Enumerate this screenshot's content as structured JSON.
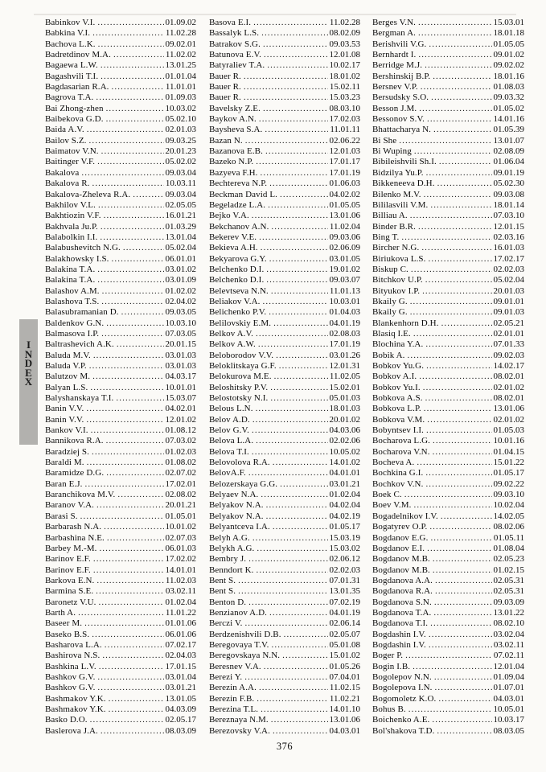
{
  "page": {
    "number": "376",
    "sidebar_label": "INDEX",
    "sidebar_letters": [
      "I",
      "N",
      "D",
      "E",
      "X"
    ]
  },
  "columns": [
    {
      "entries": [
        {
          "name": "Babinkov V.I.",
          "code": "01.09.02"
        },
        {
          "name": "Babkina V.I.",
          "code": "11.02.28"
        },
        {
          "name": "Bachova L.K.",
          "code": "09.02.01"
        },
        {
          "name": "Badretdinov M.A.",
          "code": "11.02.02"
        },
        {
          "name": "Bagaewa L.W.",
          "code": "13.01.25"
        },
        {
          "name": "Bagashvili T.I.",
          "code": "01.01.04"
        },
        {
          "name": "Bagdasarian R.A.",
          "code": "11.01.01"
        },
        {
          "name": "Bagrova T.A.",
          "code": "01.09.03"
        },
        {
          "name": "Bai Zhong-zhen",
          "code": "10.03.02"
        },
        {
          "name": "Baibekova G.D.",
          "code": "05.02.10"
        },
        {
          "name": "Baida A.V.",
          "code": "02.01.03"
        },
        {
          "name": "Bailov S.Z.",
          "code": "09.03.25"
        },
        {
          "name": "Baimatov V.N.",
          "code": "20.01.23"
        },
        {
          "name": "Baitinger V.F.",
          "code": "05.02.02"
        },
        {
          "name": "Bakalova",
          "code": "09.03.04"
        },
        {
          "name": "Bakalova R.",
          "code": "10.03.11"
        },
        {
          "name": "Bakalova-Zheleva R.A.",
          "code": "09.03.04"
        },
        {
          "name": "Bakhilov V.L.",
          "code": "02.05.05"
        },
        {
          "name": "Bakhtiozin V.F.",
          "code": "16.01.21"
        },
        {
          "name": "Bakhvala Ju.P.",
          "code": "01.03.29"
        },
        {
          "name": "Balabolkin I.I.",
          "code": "13.01.04"
        },
        {
          "name": "Balabushevitch N.G.",
          "code": "05.02.04"
        },
        {
          "name": "Balakhowsky I.S.",
          "code": "06.01.01"
        },
        {
          "name": "Balakina T.A.",
          "code": "03.01.02"
        },
        {
          "name": "Balakina T.A.",
          "code": "03.01.09"
        },
        {
          "name": "Balashov A.M.",
          "code": "01.02.02"
        },
        {
          "name": "Balashova T.S.",
          "code": "02.04.02"
        },
        {
          "name": "Balasubramanian D.",
          "code": "09.03.05"
        },
        {
          "name": "Baldenkov G.N.",
          "code": "10.03.10"
        },
        {
          "name": "Balmasova I.P.",
          "code": "07.03.05"
        },
        {
          "name": "Baltrashevich A.K.",
          "code": "20.01.15"
        },
        {
          "name": "Baluda M.V.",
          "code": "03.01.03"
        },
        {
          "name": "Baluda V.P.",
          "code": "03.01.03"
        },
        {
          "name": "Balutzov M.",
          "code": "04.03.17"
        },
        {
          "name": "Balyan L.S.",
          "code": "10.01.01"
        },
        {
          "name": "Balyshanskaya T.I.",
          "code": "15.03.07"
        },
        {
          "name": "Banin V.V.",
          "code": "04.02.01"
        },
        {
          "name": "Banin V.V.",
          "code": "12.01.02"
        },
        {
          "name": "Bankov V.I.",
          "code": "01.08.12"
        },
        {
          "name": "Bannikova R.A.",
          "code": "07.03.02"
        },
        {
          "name": "Baradziej S.",
          "code": "01.02.03"
        },
        {
          "name": "Baraldi M.",
          "code": "01.08.02"
        },
        {
          "name": "Baramidze D.G.",
          "code": "02.07.02"
        },
        {
          "name": "Baran E.J.",
          "code": "17.02.01"
        },
        {
          "name": "Baranchikova M.V.",
          "code": "02.08.02"
        },
        {
          "name": "Baranov V.A.",
          "code": "20.01.21"
        },
        {
          "name": "Barasi S.",
          "code": "01.05.01"
        },
        {
          "name": "Barbarash N.A.",
          "code": "10.01.02"
        },
        {
          "name": "Barbashina N.E.",
          "code": "02.07.03"
        },
        {
          "name": "Barbey M.-M.",
          "code": "06.01.03"
        },
        {
          "name": "Barinov E.F.",
          "code": "17.02.02"
        },
        {
          "name": "Barinov E.F.",
          "code": "14.01.01"
        },
        {
          "name": "Barkova E.N.",
          "code": "11.02.03"
        },
        {
          "name": "Barmina S.E.",
          "code": "03.02.11"
        },
        {
          "name": "Baronetz V.U.",
          "code": "01.02.04"
        },
        {
          "name": "Barth A.",
          "code": "11.01.22"
        },
        {
          "name": "Baseer M.",
          "code": "01.01.06"
        },
        {
          "name": "Baseko B.S.",
          "code": "06.01.06"
        },
        {
          "name": "Basharova L.A.",
          "code": "07.02.17"
        },
        {
          "name": "Bashirova N.S.",
          "code": "02.04.03"
        },
        {
          "name": "Bashkina L.V.",
          "code": "17.01.15"
        },
        {
          "name": "Bashkov G.V.",
          "code": "03.01.04"
        },
        {
          "name": "Bashkov G.V.",
          "code": "03.01.21"
        },
        {
          "name": "Bashmakov Y.K.",
          "code": "13.01.05"
        },
        {
          "name": "Bashmakov Y.K.",
          "code": "04.03.09"
        },
        {
          "name": "Basko D.O.",
          "code": "02.05.17"
        },
        {
          "name": "Baslerova J.A.",
          "code": "08.03.09"
        }
      ]
    },
    {
      "entries": [
        {
          "name": "Basova E.I.",
          "code": "11.02.28"
        },
        {
          "name": "Bassalyk L.S.",
          "code": "08.02.09"
        },
        {
          "name": "Batrakov S.G.",
          "code": "09.03.53"
        },
        {
          "name": "Batunova E.V.",
          "code": "12.01.08"
        },
        {
          "name": "Batyraliev T.A.",
          "code": "10.02.17"
        },
        {
          "name": "Bauer R.",
          "code": "18.01.02"
        },
        {
          "name": "Bauer R.",
          "code": "15.02.11"
        },
        {
          "name": "Bauer R.",
          "code": "15.03.23"
        },
        {
          "name": "Bavelsky Z.E.",
          "code": "08.03.10"
        },
        {
          "name": "Baykov A.N.",
          "code": "17.02.03"
        },
        {
          "name": "Baysheva S.A.",
          "code": "11.01.11"
        },
        {
          "name": "Bazan N.",
          "code": "02.06.22"
        },
        {
          "name": "Bazanova E.B.",
          "code": "12.01.03"
        },
        {
          "name": "Bazeko N.P.",
          "code": "17.01.17"
        },
        {
          "name": "Bazyeva F.H.",
          "code": "17.01.19"
        },
        {
          "name": "Bechtereva N.P.",
          "code": "01.06.03"
        },
        {
          "name": "Beckman David L.",
          "code": "04.02.02"
        },
        {
          "name": "Begeladze L.A.",
          "code": "01.05.05"
        },
        {
          "name": "Bejko V.A.",
          "code": "13.01.06"
        },
        {
          "name": "Bekchanov A.N.",
          "code": "11.02.04"
        },
        {
          "name": "Bekerev V.E.",
          "code": "09.03.06"
        },
        {
          "name": "Bekieva A.H.",
          "code": "02.06.09"
        },
        {
          "name": "Bekyarova G.Y.",
          "code": "03.01.05"
        },
        {
          "name": "Belchenko D.I.",
          "code": "19.01.02"
        },
        {
          "name": "Belchenko D.I.",
          "code": "09.03.07"
        },
        {
          "name": "Belevtseva N.N.",
          "code": "11.01.13"
        },
        {
          "name": "Beliakov V.A.",
          "code": "10.03.01"
        },
        {
          "name": "Belichenko P.V.",
          "code": "01.04.03"
        },
        {
          "name": "Belilovskiy E.M.",
          "code": "04.01.19"
        },
        {
          "name": "Belkov A.V.",
          "code": "02.08.03"
        },
        {
          "name": "Belkov A.W.",
          "code": "17.01.19"
        },
        {
          "name": "Beloborodov V.V.",
          "code": "03.01.26"
        },
        {
          "name": "Beloklitskaya G.F.",
          "code": "12.01.31"
        },
        {
          "name": "Belokurova M.E.",
          "code": "11.02.05"
        },
        {
          "name": "Beloshitsky P.V.",
          "code": "15.02.01"
        },
        {
          "name": "Belostotsky N.I.",
          "code": "05.01.03"
        },
        {
          "name": "Belous L.N.",
          "code": "18.01.03"
        },
        {
          "name": "Belov A.D.",
          "code": "20.01.02"
        },
        {
          "name": "Belov G.V.",
          "code": "04.03.06"
        },
        {
          "name": "Belova L.A.",
          "code": "02.02.06"
        },
        {
          "name": "Belova T.I.",
          "code": "10.05.02"
        },
        {
          "name": "Belovolova R.A.",
          "code": "14.01.02"
        },
        {
          "name": "BelovA.F.",
          "code": "04.01.01"
        },
        {
          "name": "Belozerskaya G.G.",
          "code": "03.01.21"
        },
        {
          "name": "Belyaev N.A.",
          "code": "01.02.04"
        },
        {
          "name": "Belyakov N.A.",
          "code": "04.02.04"
        },
        {
          "name": "Belyakov N.A.",
          "code": "04.02.19"
        },
        {
          "name": "Belyantceva I.A.",
          "code": "01.05.17"
        },
        {
          "name": "Belyh A.G.",
          "code": "15.03.19"
        },
        {
          "name": "Belykh A.G.",
          "code": "15.03.02"
        },
        {
          "name": "Bembry J.",
          "code": "02.06.12"
        },
        {
          "name": "Benndort K.",
          "code": "02.02.03"
        },
        {
          "name": "Bent S.",
          "code": "07.01.31"
        },
        {
          "name": "Bent S.",
          "code": "13.01.35"
        },
        {
          "name": "Benton D.",
          "code": "07.02.19"
        },
        {
          "name": "Benzianov A.D.",
          "code": "04.01.19"
        },
        {
          "name": "Berczi V.",
          "code": "02.06.14"
        },
        {
          "name": "Berdzenishvili D.B.",
          "code": "02.05.07"
        },
        {
          "name": "Beregovaya T.V.",
          "code": "05.01.08"
        },
        {
          "name": "Beregovskaya N.N.",
          "code": "15.01.02"
        },
        {
          "name": "Beresnev V.A.",
          "code": "01.05.26"
        },
        {
          "name": "Berezi Y.",
          "code": "07.04.01"
        },
        {
          "name": "Berezin A.A.",
          "code": "11.02.15"
        },
        {
          "name": "Berezin F.B.",
          "code": "11.02.21"
        },
        {
          "name": "Berezina T.L.",
          "code": "14.01.10"
        },
        {
          "name": "Bereznaya N.M.",
          "code": "13.01.06"
        },
        {
          "name": "Berezovsky V.A.",
          "code": "04.03.01"
        }
      ]
    },
    {
      "entries": [
        {
          "name": "Berges V.N.",
          "code": "15.03.01"
        },
        {
          "name": "Bergman A.",
          "code": "18.01.18"
        },
        {
          "name": "Berishvili V.G.",
          "code": "01.05.05"
        },
        {
          "name": "Bernhardt I.",
          "code": "09.01.02"
        },
        {
          "name": "Berridge M.J.",
          "code": "09.02.02"
        },
        {
          "name": "Bershinskij B.P.",
          "code": "18.01.16"
        },
        {
          "name": "Bersnev V.P.",
          "code": "01.08.03"
        },
        {
          "name": "Bersudsky S.O.",
          "code": "09.03.32"
        },
        {
          "name": "Besson J.M.",
          "code": "01.05.02"
        },
        {
          "name": "Bessonov S.V.",
          "code": "14.01.16"
        },
        {
          "name": "Bhattacharya N.",
          "code": "01.05.39"
        },
        {
          "name": "Bi She",
          "code": "13.01.07"
        },
        {
          "name": "Bi Wuping",
          "code": "02.08.09"
        },
        {
          "name": "Bibileishvili Sh.I.",
          "code": "01.06.04"
        },
        {
          "name": "Bidzilya Yu.P.",
          "code": "09.01.19"
        },
        {
          "name": "Bikkeneeva D.H.",
          "code": "05.02.30"
        },
        {
          "name": "Bilenko M.V.",
          "code": "09.03.08"
        },
        {
          "name": "Bililasvili V.M.",
          "code": "18.01.14"
        },
        {
          "name": "Billiau A.",
          "code": "07.03.10"
        },
        {
          "name": "Binder B.R.",
          "code": "12.01.15"
        },
        {
          "name": "Bing T.",
          "code": "02.03.16"
        },
        {
          "name": "Bircher N.G.",
          "code": "16.01.03"
        },
        {
          "name": "Biriukova L.S.",
          "code": "17.02.17"
        },
        {
          "name": "Biskup C.",
          "code": "02.02.03"
        },
        {
          "name": "Bitchkov U.P.",
          "code": "05.02.04"
        },
        {
          "name": "Bityukov I.P.",
          "code": "20.01.03"
        },
        {
          "name": "Bkaily G.",
          "code": "09.01.01"
        },
        {
          "name": "Bkaily G.",
          "code": "09.01.03"
        },
        {
          "name": "Blankenhorn D.H.",
          "code": "02.05.21"
        },
        {
          "name": "Blasiq I.E.",
          "code": "02.01.01"
        },
        {
          "name": "Blochina Y.A.",
          "code": "07.01.33"
        },
        {
          "name": "Bobik A.",
          "code": "09.02.03"
        },
        {
          "name": "Bobkov Yu.G.",
          "code": "14.02.17"
        },
        {
          "name": "Bobkov A.I.",
          "code": "08.02.01"
        },
        {
          "name": "Bobkov Yu.I.",
          "code": "02.01.02"
        },
        {
          "name": "Bobkova A.S.",
          "code": "08.02.01"
        },
        {
          "name": "Bobkova L.P.",
          "code": "13.01.06"
        },
        {
          "name": "Bobkova V.M.",
          "code": "02.01.02"
        },
        {
          "name": "Bobyntsev I.I.",
          "code": "01.05.03"
        },
        {
          "name": "Bocharova L.G.",
          "code": "10.01.16"
        },
        {
          "name": "Bocharova V.N.",
          "code": "01.04.15"
        },
        {
          "name": "Bocheva A.",
          "code": "15.01.22"
        },
        {
          "name": "Bochkina G.I.",
          "code": "01.05.17"
        },
        {
          "name": "Bochkov V.N.",
          "code": "09.02.22"
        },
        {
          "name": "Boek C.",
          "code": "09.03.10"
        },
        {
          "name": "Boev V.M.",
          "code": "10.02.04"
        },
        {
          "name": "Bogadelnikov I.V.",
          "code": "14.02.05"
        },
        {
          "name": "Bogatyrev O.P.",
          "code": "08.02.06"
        },
        {
          "name": "Bogdanov E.G.",
          "code": "01.05.11"
        },
        {
          "name": "Bogdanov E.I.",
          "code": "01.08.04"
        },
        {
          "name": "Bogdanov M.B.",
          "code": "02.05.23"
        },
        {
          "name": "Bogdanov M.B.",
          "code": "01.02.15"
        },
        {
          "name": "Bogdanova A.A.",
          "code": "02.05.31"
        },
        {
          "name": "Bogdanova R.A.",
          "code": "02.05.31"
        },
        {
          "name": "Bogdanova S.N.",
          "code": "09.03.09"
        },
        {
          "name": "Bogdanova T.A.",
          "code": "13.01.22"
        },
        {
          "name": "Bogdanova T.I.",
          "code": "08.02.10"
        },
        {
          "name": "Bogdashin I.V.",
          "code": "03.02.04"
        },
        {
          "name": "Bogdashin I.V.",
          "code": "03.02.11"
        },
        {
          "name": "Boger P.",
          "code": "07.02.11"
        },
        {
          "name": "Bogin I.B.",
          "code": "12.01.04"
        },
        {
          "name": "Bogolepov N.N.",
          "code": "01.09.04"
        },
        {
          "name": "Bogolepova I.N.",
          "code": "01.07.01"
        },
        {
          "name": "Bogomoletz K.O.",
          "code": "04.03.01"
        },
        {
          "name": "Bohus B.",
          "code": "10.05.01"
        },
        {
          "name": "Boichenko A.E.",
          "code": "10.03.17"
        },
        {
          "name": "Bol'shakova T.D.",
          "code": "08.03.05"
        }
      ]
    }
  ]
}
